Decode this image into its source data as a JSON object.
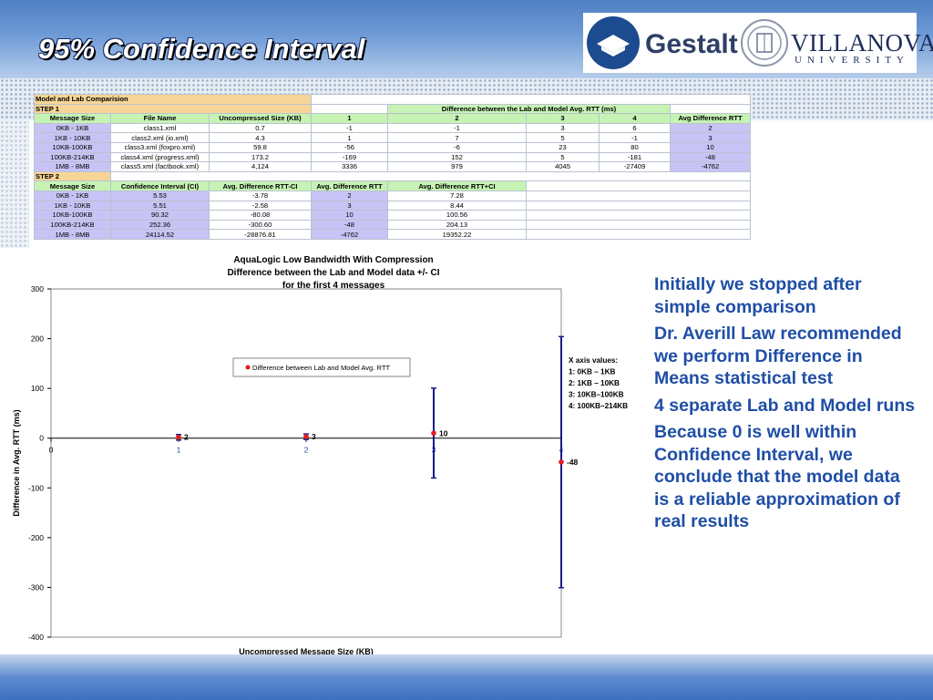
{
  "slide": {
    "title": "95% Confidence Interval",
    "logos": {
      "gestalt": "Gestalt",
      "villanova": "VILLANOVA",
      "villanova_sub": "UNIVERSITY"
    }
  },
  "sheet": {
    "title": "Model and Lab Comparision",
    "step1": {
      "label": "STEP 1",
      "group_header": "Difference between the Lab and Model Avg. RTT (ms)",
      "headers": [
        "Message Size",
        "File Name",
        "Uncompressed Size (KB)",
        "1",
        "2",
        "3",
        "4",
        "Avg Difference RTT"
      ],
      "rows": [
        [
          "0KB - 1KB",
          "class1.xml",
          "0.7",
          "-1",
          "-1",
          "3",
          "6",
          "2"
        ],
        [
          "1KB - 10KB",
          "class2.xml (io.xml)",
          "4.3",
          "1",
          "7",
          "5",
          "-1",
          "3"
        ],
        [
          "10KB-100KB",
          "class3.xml (foxpro.xml)",
          "59.8",
          "-56",
          "-6",
          "23",
          "80",
          "10"
        ],
        [
          "100KB-214KB",
          "class4.xml (progress.xml)",
          "173.2",
          "-169",
          "152",
          "5",
          "-181",
          "-48"
        ],
        [
          "1MB - 8MB",
          "class5.xml (factbook.xml)",
          "4,124",
          "3336",
          "979",
          "4045",
          "-27409",
          "-4762"
        ]
      ]
    },
    "step2": {
      "label": "STEP 2",
      "headers": [
        "Message Size",
        "Confidence Interval (CI)",
        "Avg. Difference RTT-CI",
        "Avg. Difference RTT",
        "Avg. Difference RTT+CI"
      ],
      "rows": [
        [
          "0KB - 1KB",
          "5.53",
          "-3.78",
          "2",
          "7.28"
        ],
        [
          "1KB - 10KB",
          "5.51",
          "-2.58",
          "3",
          "8.44"
        ],
        [
          "10KB-100KB",
          "90.32",
          "-80.08",
          "10",
          "100.56"
        ],
        [
          "100KB-214KB",
          "252.36",
          "-300.60",
          "-48",
          "204.13"
        ],
        [
          "1MB - 8MB",
          "24114.52",
          "-28876.81",
          "-4762",
          "19352.22"
        ]
      ]
    }
  },
  "chart_data": {
    "type": "scatter",
    "title": "AquaLogic Low Bandwidth With Compression",
    "subtitle_lines": [
      "Difference between the Lab and Model data +/- CI",
      "for the first 4 messages"
    ],
    "xlabel": "Uncompressed Message Size (KB)",
    "ylabel": "Difference in Avg. RTT (ms)",
    "xlim": [
      0,
      4
    ],
    "ylim": [
      -400,
      300
    ],
    "x_ticks": [
      "0",
      "1",
      "2",
      "3",
      "4"
    ],
    "y_ticks": [
      300,
      200,
      100,
      0,
      -100,
      -200,
      -300,
      -400
    ],
    "legend": "Difference between Lab and Model Avg. RTT",
    "legend_position": "upper-center",
    "grid": false,
    "series": [
      {
        "name": "Difference between Lab and Model Avg. RTT",
        "points": [
          {
            "x": 1,
            "y": 2,
            "low": -3.78,
            "high": 7.28,
            "label": "2"
          },
          {
            "x": 2,
            "y": 3,
            "low": -2.58,
            "high": 8.44,
            "label": "3"
          },
          {
            "x": 3,
            "y": 10,
            "low": -80.08,
            "high": 100.56,
            "label": "10"
          },
          {
            "x": 4,
            "y": -48,
            "low": -300.6,
            "high": 204.13,
            "label": "-48"
          }
        ]
      }
    ],
    "annotation": {
      "lines": [
        "X axis values:",
        "1:  0KB – 1KB",
        "2:  1KB – 10KB",
        "3:  10KB–100KB",
        "4:  100KB–214KB"
      ]
    },
    "colors": {
      "marker": "#e41c1c",
      "error_bar": "#1a1a8c",
      "axis": "#000000"
    }
  },
  "bullets": [
    "Initially we stopped after simple comparison",
    "Dr. Averill Law recommended we perform Difference in Means statistical test",
    "4 separate Lab and Model runs",
    "Because 0 is well within Confidence Interval, we conclude that the model data is a reliable approximation of real results"
  ]
}
